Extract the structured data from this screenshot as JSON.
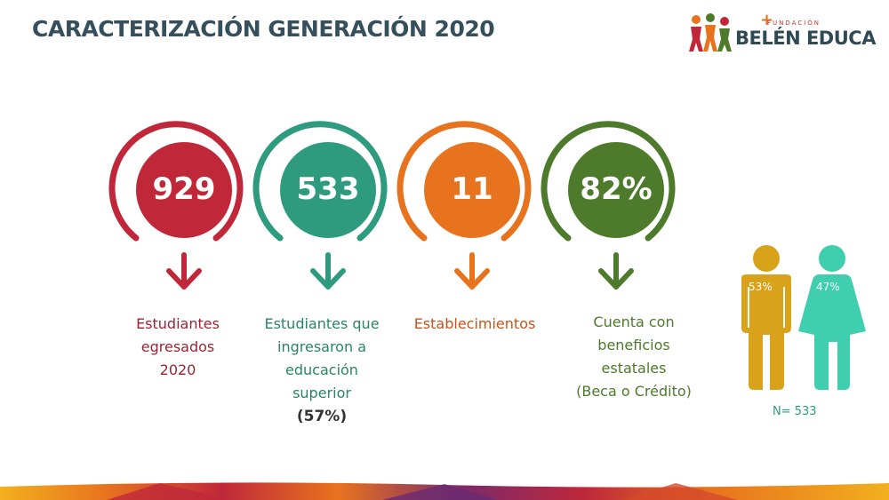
{
  "title": "CARACTERIZACIÓN GENERACIÓN 2020",
  "logo": {
    "small": "FUNDACIÓN",
    "name": "BELÉN EDUCA"
  },
  "colors": {
    "red": "#c0283a",
    "teal": "#2f9b7e",
    "orange": "#e8731e",
    "green": "#4d7a2b",
    "male": "#d9a21b",
    "female": "#3fcfae"
  },
  "stats": [
    {
      "value": "929",
      "caption": [
        "Estudiantes",
        "egresados",
        "2020"
      ],
      "sub": ""
    },
    {
      "value": "533",
      "caption": [
        "Estudiantes que",
        "ingresaron a",
        "educación",
        "superior"
      ],
      "sub": "(57%)"
    },
    {
      "value": "11",
      "caption": [
        "Establecimientos"
      ],
      "sub": ""
    },
    {
      "value": "82%",
      "caption": [
        "Cuenta con",
        "beneficios",
        "estatales",
        "(Beca o Crédito)"
      ],
      "sub": ""
    }
  ],
  "gender": {
    "male_pct": "53%",
    "female_pct": "47%",
    "n": "N= 533"
  }
}
